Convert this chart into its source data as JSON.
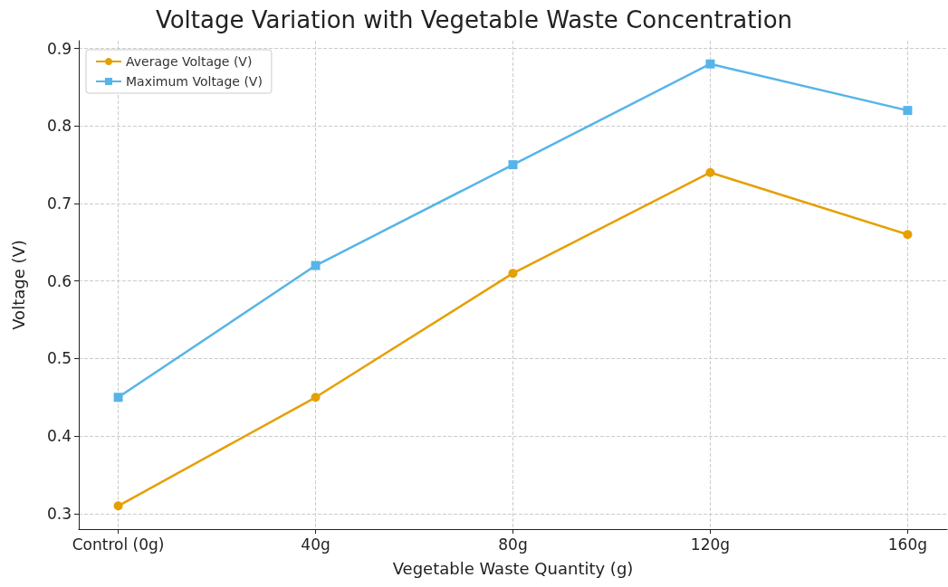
{
  "chart_data": {
    "type": "line",
    "title": "Voltage Variation with Vegetable Waste Concentration",
    "xlabel": "Vegetable Waste Quantity (g)",
    "ylabel": "Voltage (V)",
    "categories": [
      "Control (0g)",
      "40g",
      "80g",
      "120g",
      "160g"
    ],
    "series": [
      {
        "name": "Average Voltage (V)",
        "color": "#e69f00",
        "values": [
          0.31,
          0.45,
          0.61,
          0.74,
          0.66
        ],
        "marker": "circle"
      },
      {
        "name": "Maximum Voltage (V)",
        "color": "#56b4e9",
        "values": [
          0.45,
          0.62,
          0.75,
          0.88,
          0.82
        ],
        "marker": "square"
      }
    ],
    "ylim": [
      0.28,
      0.91
    ],
    "yticks": [
      0.3,
      0.4,
      0.5,
      0.6,
      0.7,
      0.8,
      0.9
    ],
    "grid": true,
    "legend": "top left",
    "line_style": "solid"
  }
}
